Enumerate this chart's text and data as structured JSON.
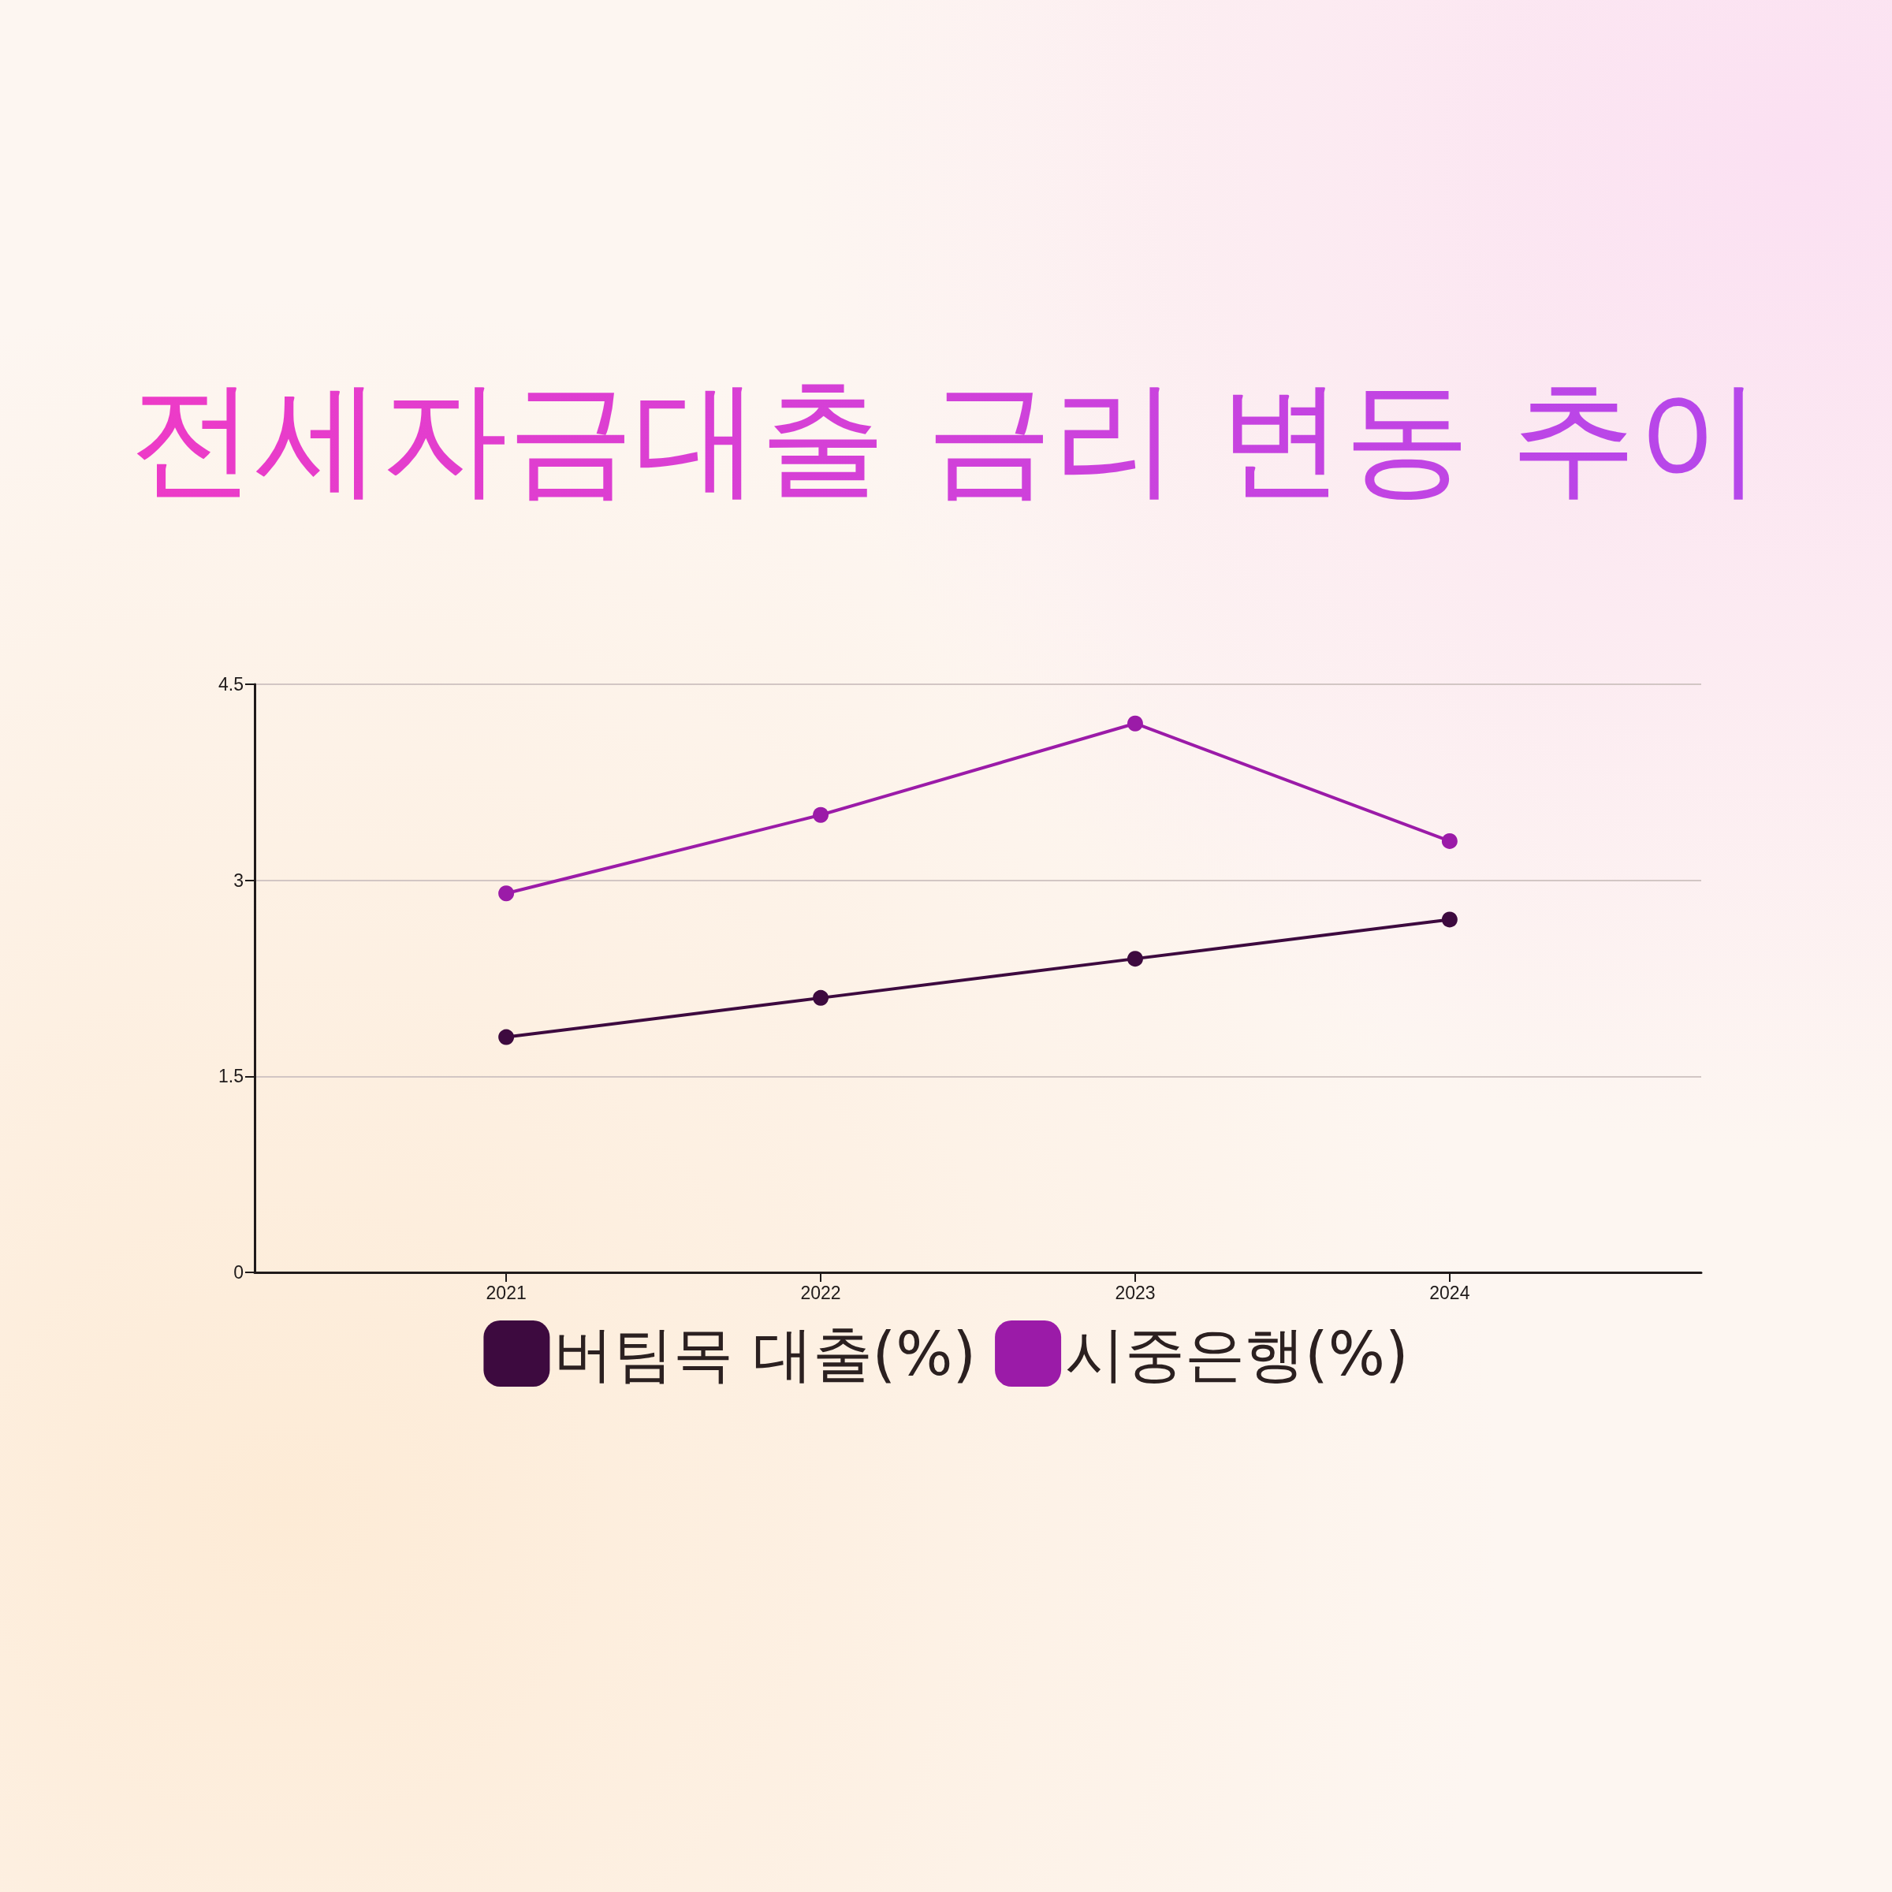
{
  "chart_data": {
    "type": "line",
    "title": "전세자금대출 금리 변동 추이",
    "x": [
      2021,
      2022,
      2023,
      2024
    ],
    "xlim": [
      2020.2,
      2024.8
    ],
    "xticks": [
      2021,
      2022,
      2023,
      2024
    ],
    "ylim": [
      0,
      4.5
    ],
    "yticks": [
      0,
      1.5,
      3,
      4.5
    ],
    "series": [
      {
        "name": "버팀목 대출(%)",
        "color": "#3d0a3f",
        "values": [
          1.8,
          2.1,
          2.4,
          2.7
        ]
      },
      {
        "name": "시중은행(%)",
        "color": "#9b1ba8",
        "values": [
          2.9,
          3.5,
          4.2,
          3.3
        ]
      }
    ],
    "grid": "y",
    "legend": "bottom",
    "marker": "circle",
    "line_style": "solid"
  }
}
